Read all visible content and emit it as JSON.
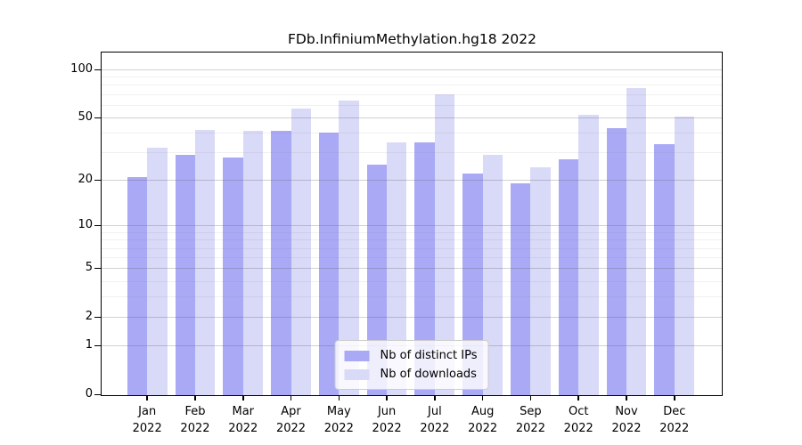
{
  "title": "FDb.InfiniumMethylation.hg18 2022",
  "colors": {
    "ips_bar": "#A9A9F5",
    "downloads_bar": "#D9D9F8",
    "axis": "#000000",
    "legend_border": "#CCCCCC"
  },
  "chart_data": {
    "type": "bar",
    "title": "FDb.InfiniumMethylation.hg18 2022",
    "categories": [
      {
        "month": "Jan",
        "year": "2022"
      },
      {
        "month": "Feb",
        "year": "2022"
      },
      {
        "month": "Mar",
        "year": "2022"
      },
      {
        "month": "Apr",
        "year": "2022"
      },
      {
        "month": "May",
        "year": "2022"
      },
      {
        "month": "Jun",
        "year": "2022"
      },
      {
        "month": "Jul",
        "year": "2022"
      },
      {
        "month": "Aug",
        "year": "2022"
      },
      {
        "month": "Sep",
        "year": "2022"
      },
      {
        "month": "Oct",
        "year": "2022"
      },
      {
        "month": "Nov",
        "year": "2022"
      },
      {
        "month": "Dec",
        "year": "2022"
      }
    ],
    "series": [
      {
        "name": "Nb of distinct IPs",
        "color_key": "ips_bar",
        "values": [
          21,
          29,
          28,
          41,
          40,
          25,
          35,
          22,
          19,
          27,
          43,
          34
        ]
      },
      {
        "name": "Nb of downloads",
        "color_key": "downloads_bar",
        "values": [
          32,
          42,
          41,
          57,
          64,
          35,
          70,
          29,
          24,
          52,
          76,
          51
        ]
      }
    ],
    "xlabel": "",
    "ylabel": "",
    "yscale": "log1p",
    "ylim": [
      0,
      128
    ],
    "yticks": [
      0,
      1,
      2,
      5,
      10,
      20,
      50,
      100
    ],
    "minor_gridlines": [
      3,
      4,
      6,
      7,
      8,
      9,
      30,
      40,
      60,
      70,
      80,
      90
    ],
    "grid": true,
    "legend_position": "lower center"
  }
}
